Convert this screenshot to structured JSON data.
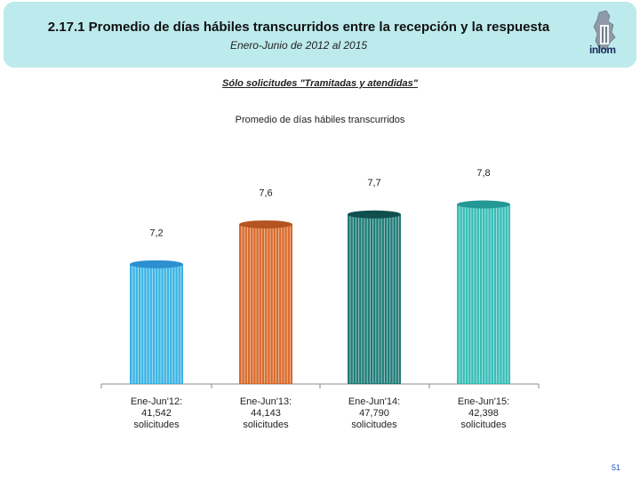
{
  "header": {
    "title": "2.17.1 Promedio de días hábiles transcurridos entre la recepción y la respuesta",
    "subtitle": "Enero-Junio de 2012 al 2015",
    "logo_text": "inlom"
  },
  "note": "Sólo solicitudes \"Tramitadas y atendidas\"",
  "page_number": "51",
  "chart_data": {
    "type": "bar",
    "title": "Promedio de días hábiles transcurridos",
    "categories": [
      [
        "Ene-Jun'12:",
        "41,542",
        "solicitudes"
      ],
      [
        "Ene-Jun'13:",
        "44,143",
        "solicitudes"
      ],
      [
        "Ene-Jun'14:",
        "47,790",
        "solicitudes"
      ],
      [
        "Ene-Jun'15:",
        "42,398",
        "solicitudes"
      ]
    ],
    "values": [
      7.2,
      7.6,
      7.7,
      7.8
    ],
    "value_labels": [
      "7,2",
      "7,6",
      "7,7",
      "7,8"
    ],
    "colors": [
      "#3ab4e4",
      "#d8692a",
      "#1e7b78",
      "#36bdb7"
    ],
    "cap_colors": [
      "#2c8fd0",
      "#b45420",
      "#0f4f4d",
      "#249894"
    ],
    "xlabel": "",
    "ylabel": "",
    "ylim": [
      0,
      7.8
    ]
  }
}
